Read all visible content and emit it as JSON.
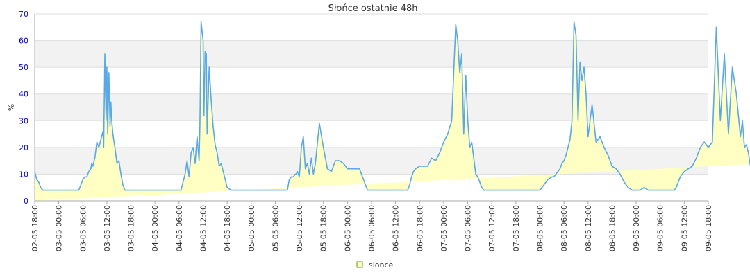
{
  "chart_data": {
    "type": "area",
    "title": "Słońce ostatnie 48h",
    "xlabel": "",
    "ylabel": "%",
    "ylim": [
      0,
      70
    ],
    "yticks": [
      0,
      10,
      20,
      30,
      40,
      50,
      60,
      70
    ],
    "grid": true,
    "legend": "bottom-center",
    "xticks": [
      "02-05 18:00",
      "03-05 00:00",
      "03-05 06:00",
      "03-05 12:00",
      "03-05 18:00",
      "04-05 00:00",
      "04-05 06:00",
      "04-05 12:00",
      "04-05 18:00",
      "05-05 00:00",
      "05-05 06:00",
      "05-05 12:00",
      "05-05 18:00",
      "06-05 00:00",
      "06-05 06:00",
      "06-05 12:00",
      "06-05 18:00",
      "07-05 00:00",
      "07-05 06:00",
      "07-05 12:00",
      "07-05 18:00",
      "08-05 00:00",
      "08-05 06:00",
      "08-05 12:00",
      "08-05 18:00",
      "09-05 00:00",
      "09-05 06:00",
      "09-05 12:00",
      "09-05 18:00"
    ],
    "x_hours": [
      0,
      0.5,
      1,
      1.5,
      2,
      3,
      4,
      5,
      6,
      7,
      8,
      9,
      10,
      11,
      11.5,
      12,
      12.5,
      13,
      13.5,
      14,
      14.2,
      14.5,
      15,
      15.5,
      16,
      16.5,
      17,
      17.2,
      17.5,
      17.8,
      18,
      18.2,
      18.5,
      18.8,
      19,
      19.2,
      19.5,
      19.8,
      20,
      20.5,
      21,
      21.5,
      22,
      22.5,
      23,
      23.5,
      24,
      24.5,
      25,
      26,
      27,
      28,
      29,
      30,
      31,
      32,
      33,
      34,
      35,
      36,
      36.5,
      37,
      37.5,
      38,
      38.5,
      39,
      39.5,
      40,
      40.5,
      41,
      41.2,
      41.5,
      42,
      42.2,
      42.5,
      42.8,
      43,
      43.5,
      44,
      44.5,
      45,
      45.5,
      46,
      46.5,
      47,
      47.5,
      48,
      49,
      50,
      51,
      52,
      53,
      54,
      55,
      56,
      57,
      58,
      59,
      60,
      60.5,
      61,
      61.5,
      62,
      62.5,
      63,
      63.5,
      64,
      64.5,
      65,
      65.2,
      65.5,
      66,
      66.2,
      66.5,
      67,
      67.5,
      68,
      68.5,
      69,
      69.5,
      70,
      71,
      72,
      73,
      74,
      75,
      76,
      77,
      78,
      79,
      80,
      81,
      82,
      83,
      84,
      85,
      86,
      86.5,
      87,
      87.5,
      88,
      88.5,
      89,
      89.5,
      90,
      90.5,
      91,
      91.5,
      92,
      92.5,
      93,
      93.5,
      94,
      94.5,
      95,
      96,
      97,
      98,
      99,
      100,
      101,
      102,
      103,
      104,
      105,
      105.5,
      106,
      106.5,
      107,
      107.5,
      108,
      108.5,
      109,
      109.5,
      110,
      110.5,
      111,
      111.5,
      112,
      112.5,
      113,
      113.5,
      114,
      115,
      116,
      117,
      118,
      119,
      120,
      121,
      122,
      123,
      124,
      125,
      126,
      127,
      128,
      129,
      129.5,
      130,
      130.5,
      131,
      131.5,
      132,
      132.5,
      133,
      133.5,
      134,
      134.5,
      135,
      135.5,
      136,
      136.5,
      137,
      137.5,
      138,
      139,
      140,
      141,
      142,
      143,
      144,
      145,
      146,
      147,
      148,
      149,
      150,
      151,
      152,
      153,
      153.5,
      154,
      154.5,
      155,
      155.5,
      156,
      156.5,
      157,
      157.5,
      158,
      158.5,
      159,
      159.5,
      160,
      160.5,
      161,
      161.5,
      162,
      163,
      164,
      165,
      166,
      167,
      168,
      169,
      170,
      171,
      172,
      173,
      174,
      175,
      176,
      176.5,
      177,
      177.5,
      178,
      178.5,
      179,
      179.5,
      180,
      180.5,
      181,
      181.5,
      182,
      182.5,
      183,
      183.5,
      184,
      184.5,
      185,
      185.5,
      186,
      186.5,
      187,
      187.5,
      188,
      189,
      190,
      191,
      192,
      193,
      194,
      195,
      196,
      197,
      198,
      199,
      200,
      201,
      201.5,
      202,
      202.5,
      203,
      203.5,
      204,
      204.5,
      205,
      205.5,
      206,
      206.5,
      207,
      207.5,
      208,
      208.5,
      209,
      209.5,
      210,
      210.5,
      211,
      211.5,
      212,
      212.5,
      213,
      213.5,
      214,
      214.5,
      215,
      215.5,
      216
    ],
    "series": [
      {
        "name": "slonce",
        "values": [
          11,
          8,
          7,
          5,
          4,
          4,
          4,
          4,
          4,
          4,
          4,
          4,
          4,
          4,
          6,
          8,
          9,
          9,
          11,
          12,
          14,
          13,
          16,
          22,
          20,
          23,
          26,
          20,
          55,
          30,
          50,
          25,
          48,
          28,
          37,
          30,
          25,
          22,
          20,
          14,
          15,
          10,
          6,
          4,
          4,
          4,
          4,
          4,
          4,
          4,
          4,
          4,
          4,
          4,
          4,
          4,
          4,
          4,
          4,
          4,
          4,
          7,
          10,
          15,
          9,
          18,
          20,
          14,
          24,
          15,
          28,
          67,
          60,
          32,
          56,
          55,
          25,
          50,
          38,
          28,
          21,
          18,
          13,
          14,
          11,
          8,
          5,
          4,
          4,
          4,
          4,
          4,
          4,
          4,
          4,
          4,
          4,
          4,
          4,
          4,
          4,
          4,
          4,
          4,
          4,
          8,
          9,
          9,
          10,
          10,
          11,
          9,
          13,
          20,
          24,
          12,
          14,
          10,
          16,
          10,
          14,
          29,
          20,
          12,
          11,
          15,
          15,
          14,
          12,
          12,
          12,
          12,
          8,
          4,
          4,
          4,
          4,
          4,
          4,
          4,
          4,
          4,
          4,
          4,
          4,
          4,
          4,
          4,
          4,
          4,
          4,
          6,
          9,
          11,
          12,
          13,
          13,
          13,
          16,
          15,
          18,
          22,
          25,
          30,
          66,
          60,
          48,
          55,
          25,
          47,
          30,
          20,
          22,
          16,
          10,
          9,
          7,
          5,
          4,
          4,
          4,
          4,
          4,
          4,
          4,
          4,
          4,
          4,
          4,
          4,
          4,
          4,
          4,
          4,
          4,
          6,
          8,
          9,
          9,
          10,
          11,
          12,
          14,
          15,
          17,
          20,
          23,
          30,
          67,
          62,
          30,
          52,
          45,
          50,
          40,
          24,
          36,
          22,
          24,
          20,
          17,
          13,
          12,
          10,
          7,
          5,
          4,
          4,
          4,
          5,
          4,
          4,
          4,
          4,
          4,
          4,
          4,
          4,
          4,
          4,
          4,
          4,
          4,
          4,
          5,
          7,
          9,
          10,
          11,
          12,
          13,
          16,
          20,
          22,
          20,
          22,
          65,
          30,
          55,
          25,
          50,
          40,
          24,
          30,
          20,
          21,
          18,
          13,
          14,
          10,
          8,
          5,
          4,
          4,
          4,
          4,
          4,
          4,
          4,
          4,
          4,
          4,
          4,
          4,
          4,
          4,
          4,
          5,
          8,
          10,
          11,
          12,
          10,
          15,
          19,
          15,
          13,
          20,
          22,
          15,
          61,
          28,
          20,
          53,
          18,
          36,
          16,
          18,
          20,
          13,
          16,
          12,
          9,
          16
        ]
      }
    ],
    "colors": {
      "line": "#5aa8e6",
      "fill": "#ffffc4",
      "band": "#f2f2f2",
      "grid": "#dddddd",
      "axis": "#aaaaaa",
      "legend_box": "#6b8e23"
    }
  }
}
